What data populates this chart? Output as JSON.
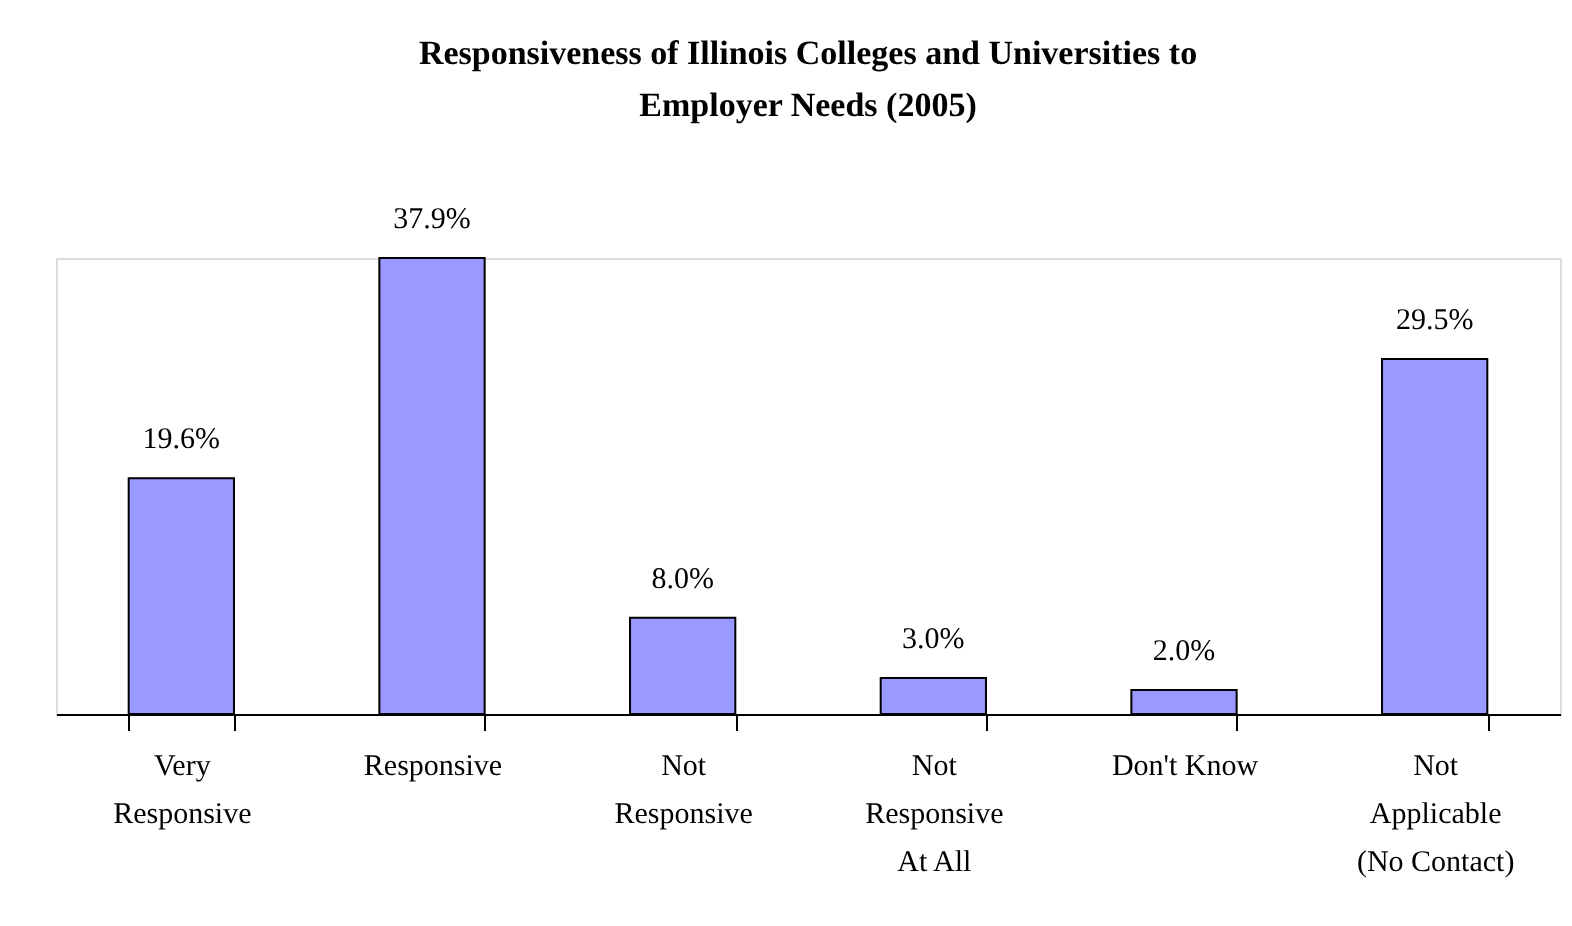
{
  "chart_data": {
    "type": "bar",
    "title": "Responsiveness of Illinois Colleges and Universities to Employer Needs (2005)",
    "categories": [
      "Very Responsive",
      "Responsive",
      "Not Responsive",
      "Not Responsive At All",
      "Don't Know",
      "Not Applicable (No Contact)"
    ],
    "values": [
      19.6,
      37.9,
      8.0,
      3.0,
      2.0,
      29.5
    ],
    "value_labels": [
      "19.6%",
      "37.9%",
      "8.0%",
      "3.0%",
      "2.0%",
      "29.5%"
    ],
    "color": "#9999ff"
  }
}
